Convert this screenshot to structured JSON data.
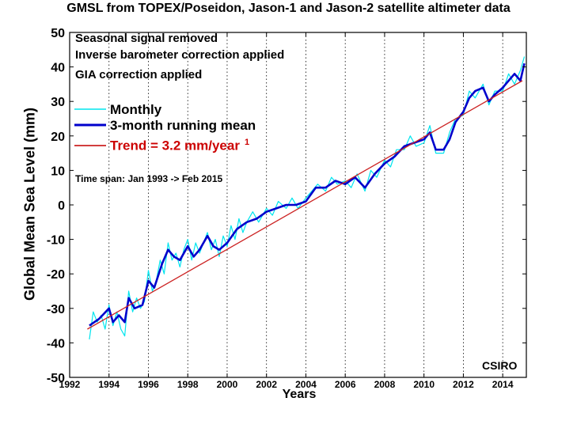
{
  "chart_data": {
    "type": "line",
    "title": "GMSL from TOPEX/Poseidon, Jason-1 and Jason-2 satellite altimeter data",
    "xlabel": "Years",
    "ylabel": "Global Mean Sea Level (mm)",
    "xlim": [
      1992,
      2015.2
    ],
    "ylim": [
      -50,
      50
    ],
    "xticks": [
      1992,
      1994,
      1996,
      1998,
      2000,
      2002,
      2004,
      2006,
      2008,
      2010,
      2012,
      2014
    ],
    "yticks": [
      -50,
      -40,
      -30,
      -20,
      -10,
      0,
      10,
      20,
      30,
      40,
      50
    ],
    "grid": "dotted vertical",
    "notes": [
      "Seasonal signal removed",
      "Inverse barometer correction applied",
      "GIA correction applied"
    ],
    "time_span": "Time span: Jan 1993 -> Feb 2015",
    "credit": "CSIRO",
    "legend": {
      "placement": "top-left",
      "monthly": "Monthly",
      "running_mean": "3-month running mean",
      "trend": "Trend = 3.2 mm/year",
      "trend_sup": "1"
    },
    "series": [
      {
        "name": "3-month running mean",
        "color": "#0000cc",
        "x": [
          1993.0,
          1993.5,
          1994.0,
          1994.2,
          1994.5,
          1994.8,
          1995.0,
          1995.3,
          1995.7,
          1996.0,
          1996.3,
          1996.7,
          1997.0,
          1997.3,
          1997.6,
          1998.0,
          1998.3,
          1998.6,
          1999.0,
          1999.3,
          1999.6,
          2000.0,
          2000.5,
          2001.0,
          2001.5,
          2002.0,
          2002.5,
          2003.0,
          2003.5,
          2004.0,
          2004.5,
          2005.0,
          2005.5,
          2006.0,
          2006.5,
          2007.0,
          2007.5,
          2008.0,
          2008.5,
          2009.0,
          2009.5,
          2010.0,
          2010.3,
          2010.6,
          2011.0,
          2011.3,
          2011.6,
          2012.0,
          2012.3,
          2012.6,
          2013.0,
          2013.3,
          2013.6,
          2014.0,
          2014.3,
          2014.6,
          2014.9,
          2015.1
        ],
        "y": [
          -35,
          -33,
          -30,
          -34,
          -32,
          -34,
          -27,
          -30,
          -29,
          -22,
          -24,
          -17,
          -13,
          -15,
          -16,
          -12,
          -15,
          -13,
          -9,
          -12,
          -13,
          -11,
          -7,
          -5,
          -4,
          -2,
          -1,
          0,
          0,
          1,
          5,
          5,
          7,
          6,
          8,
          5,
          9,
          12,
          14,
          17,
          18,
          19,
          21,
          16,
          16,
          19,
          24,
          27,
          31,
          33,
          34,
          30,
          32,
          34,
          36,
          38,
          36,
          41
        ]
      },
      {
        "name": "Monthly",
        "color": "#00e5ee",
        "x": [
          1993.0,
          1993.2,
          1993.4,
          1993.6,
          1993.8,
          1994.0,
          1994.2,
          1994.4,
          1994.6,
          1994.8,
          1995.0,
          1995.2,
          1995.4,
          1995.6,
          1995.8,
          1996.0,
          1996.2,
          1996.4,
          1996.6,
          1996.8,
          1997.0,
          1997.2,
          1997.4,
          1997.6,
          1997.8,
          1998.0,
          1998.2,
          1998.4,
          1998.6,
          1998.8,
          1999.0,
          1999.2,
          1999.4,
          1999.6,
          1999.8,
          2000.0,
          2000.2,
          2000.4,
          2000.6,
          2000.8,
          2001.0,
          2001.3,
          2001.6,
          2002.0,
          2002.3,
          2002.6,
          2003.0,
          2003.3,
          2003.6,
          2004.0,
          2004.3,
          2004.6,
          2005.0,
          2005.3,
          2005.6,
          2006.0,
          2006.3,
          2006.6,
          2007.0,
          2007.3,
          2007.6,
          2008.0,
          2008.3,
          2008.6,
          2009.0,
          2009.3,
          2009.6,
          2010.0,
          2010.3,
          2010.6,
          2011.0,
          2011.3,
          2011.6,
          2012.0,
          2012.3,
          2012.6,
          2013.0,
          2013.3,
          2013.6,
          2014.0,
          2014.3,
          2014.6,
          2014.9,
          2015.1
        ],
        "y": [
          -39,
          -31,
          -34,
          -32,
          -36,
          -29,
          -35,
          -31,
          -36,
          -38,
          -25,
          -31,
          -27,
          -30,
          -28,
          -19,
          -25,
          -22,
          -16,
          -20,
          -11,
          -16,
          -14,
          -18,
          -13,
          -10,
          -16,
          -11,
          -14,
          -11,
          -8,
          -13,
          -10,
          -15,
          -9,
          -12,
          -6,
          -10,
          -4,
          -8,
          -5,
          -2,
          -5,
          -1,
          -3,
          1,
          -1,
          2,
          -1,
          2,
          4,
          6,
          4,
          8,
          6,
          7,
          5,
          9,
          4,
          10,
          8,
          13,
          11,
          16,
          16,
          20,
          17,
          18,
          23,
          15,
          15,
          21,
          25,
          26,
          33,
          31,
          35,
          29,
          33,
          33,
          38,
          35,
          39,
          43
        ]
      },
      {
        "name": "Trend = 3.2 mm/year",
        "color": "#cc2222",
        "x": [
          1992.9,
          2015.0
        ],
        "y": [
          -36,
          36
        ]
      }
    ]
  }
}
